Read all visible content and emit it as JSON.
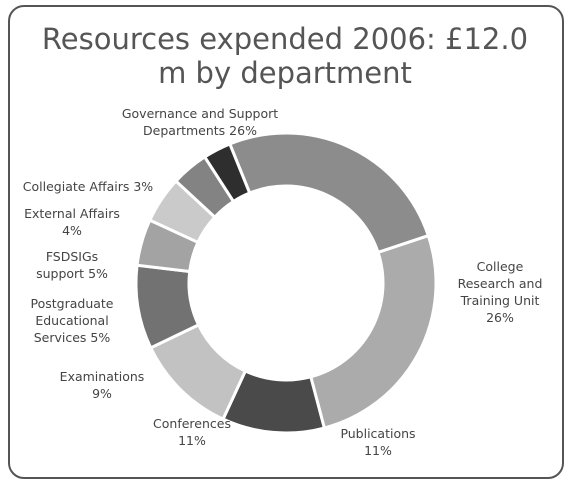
{
  "chart_data": {
    "type": "donut",
    "title": "Resources expended 2006: £12.0 m by department",
    "categories": [
      "Governance and Support Departments",
      "College Research and Training Unit",
      "Publications",
      "Conferences",
      "Examinations",
      "Postgraduate Educational Services",
      "FSDSIGs support",
      "External Affairs",
      "Collegiate Affairs"
    ],
    "values": [
      26,
      26,
      11,
      11,
      9,
      5,
      5,
      4,
      3
    ],
    "value_labels": [
      "26%",
      "26%",
      "11%",
      "11%",
      "9%",
      "5%",
      "5%",
      "4%",
      "3%"
    ],
    "colors": [
      "#8c8c8c",
      "#ababab",
      "#4a4a4a",
      "#c2c2c2",
      "#727272",
      "#a3a3a3",
      "#cacaca",
      "#838383",
      "#2e2e2e"
    ]
  }
}
